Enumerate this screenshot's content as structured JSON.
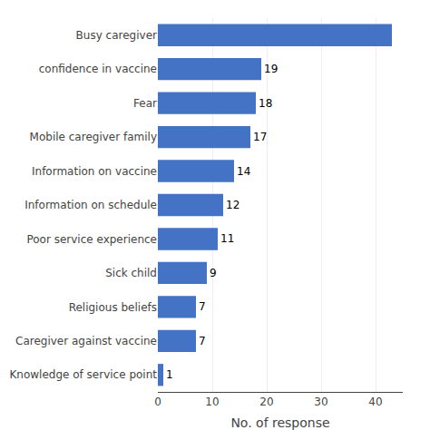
{
  "chart_data": {
    "type": "bar",
    "orientation": "horizontal",
    "categories": [
      "Knowledge of service point",
      "Caregiver against vaccine",
      "Religious beliefs",
      "Sick child",
      "Poor service experience",
      "Information on schedule",
      "Information on vaccine",
      "Mobile caregiver family",
      "Fear",
      "confidence in vaccine",
      "Busy caregiver"
    ],
    "values": [
      1,
      7,
      7,
      9,
      11,
      12,
      14,
      17,
      18,
      19,
      43
    ],
    "value_labels": [
      "1",
      "7",
      "7",
      "9",
      "11",
      "12",
      "14",
      "17",
      "18",
      "19",
      null
    ],
    "data_labels": true,
    "color": "#4472c4",
    "xlabel": "No. of response",
    "xlim": [
      0,
      45
    ],
    "xticks": [
      0,
      10,
      20,
      30,
      40
    ],
    "grid": true
  }
}
